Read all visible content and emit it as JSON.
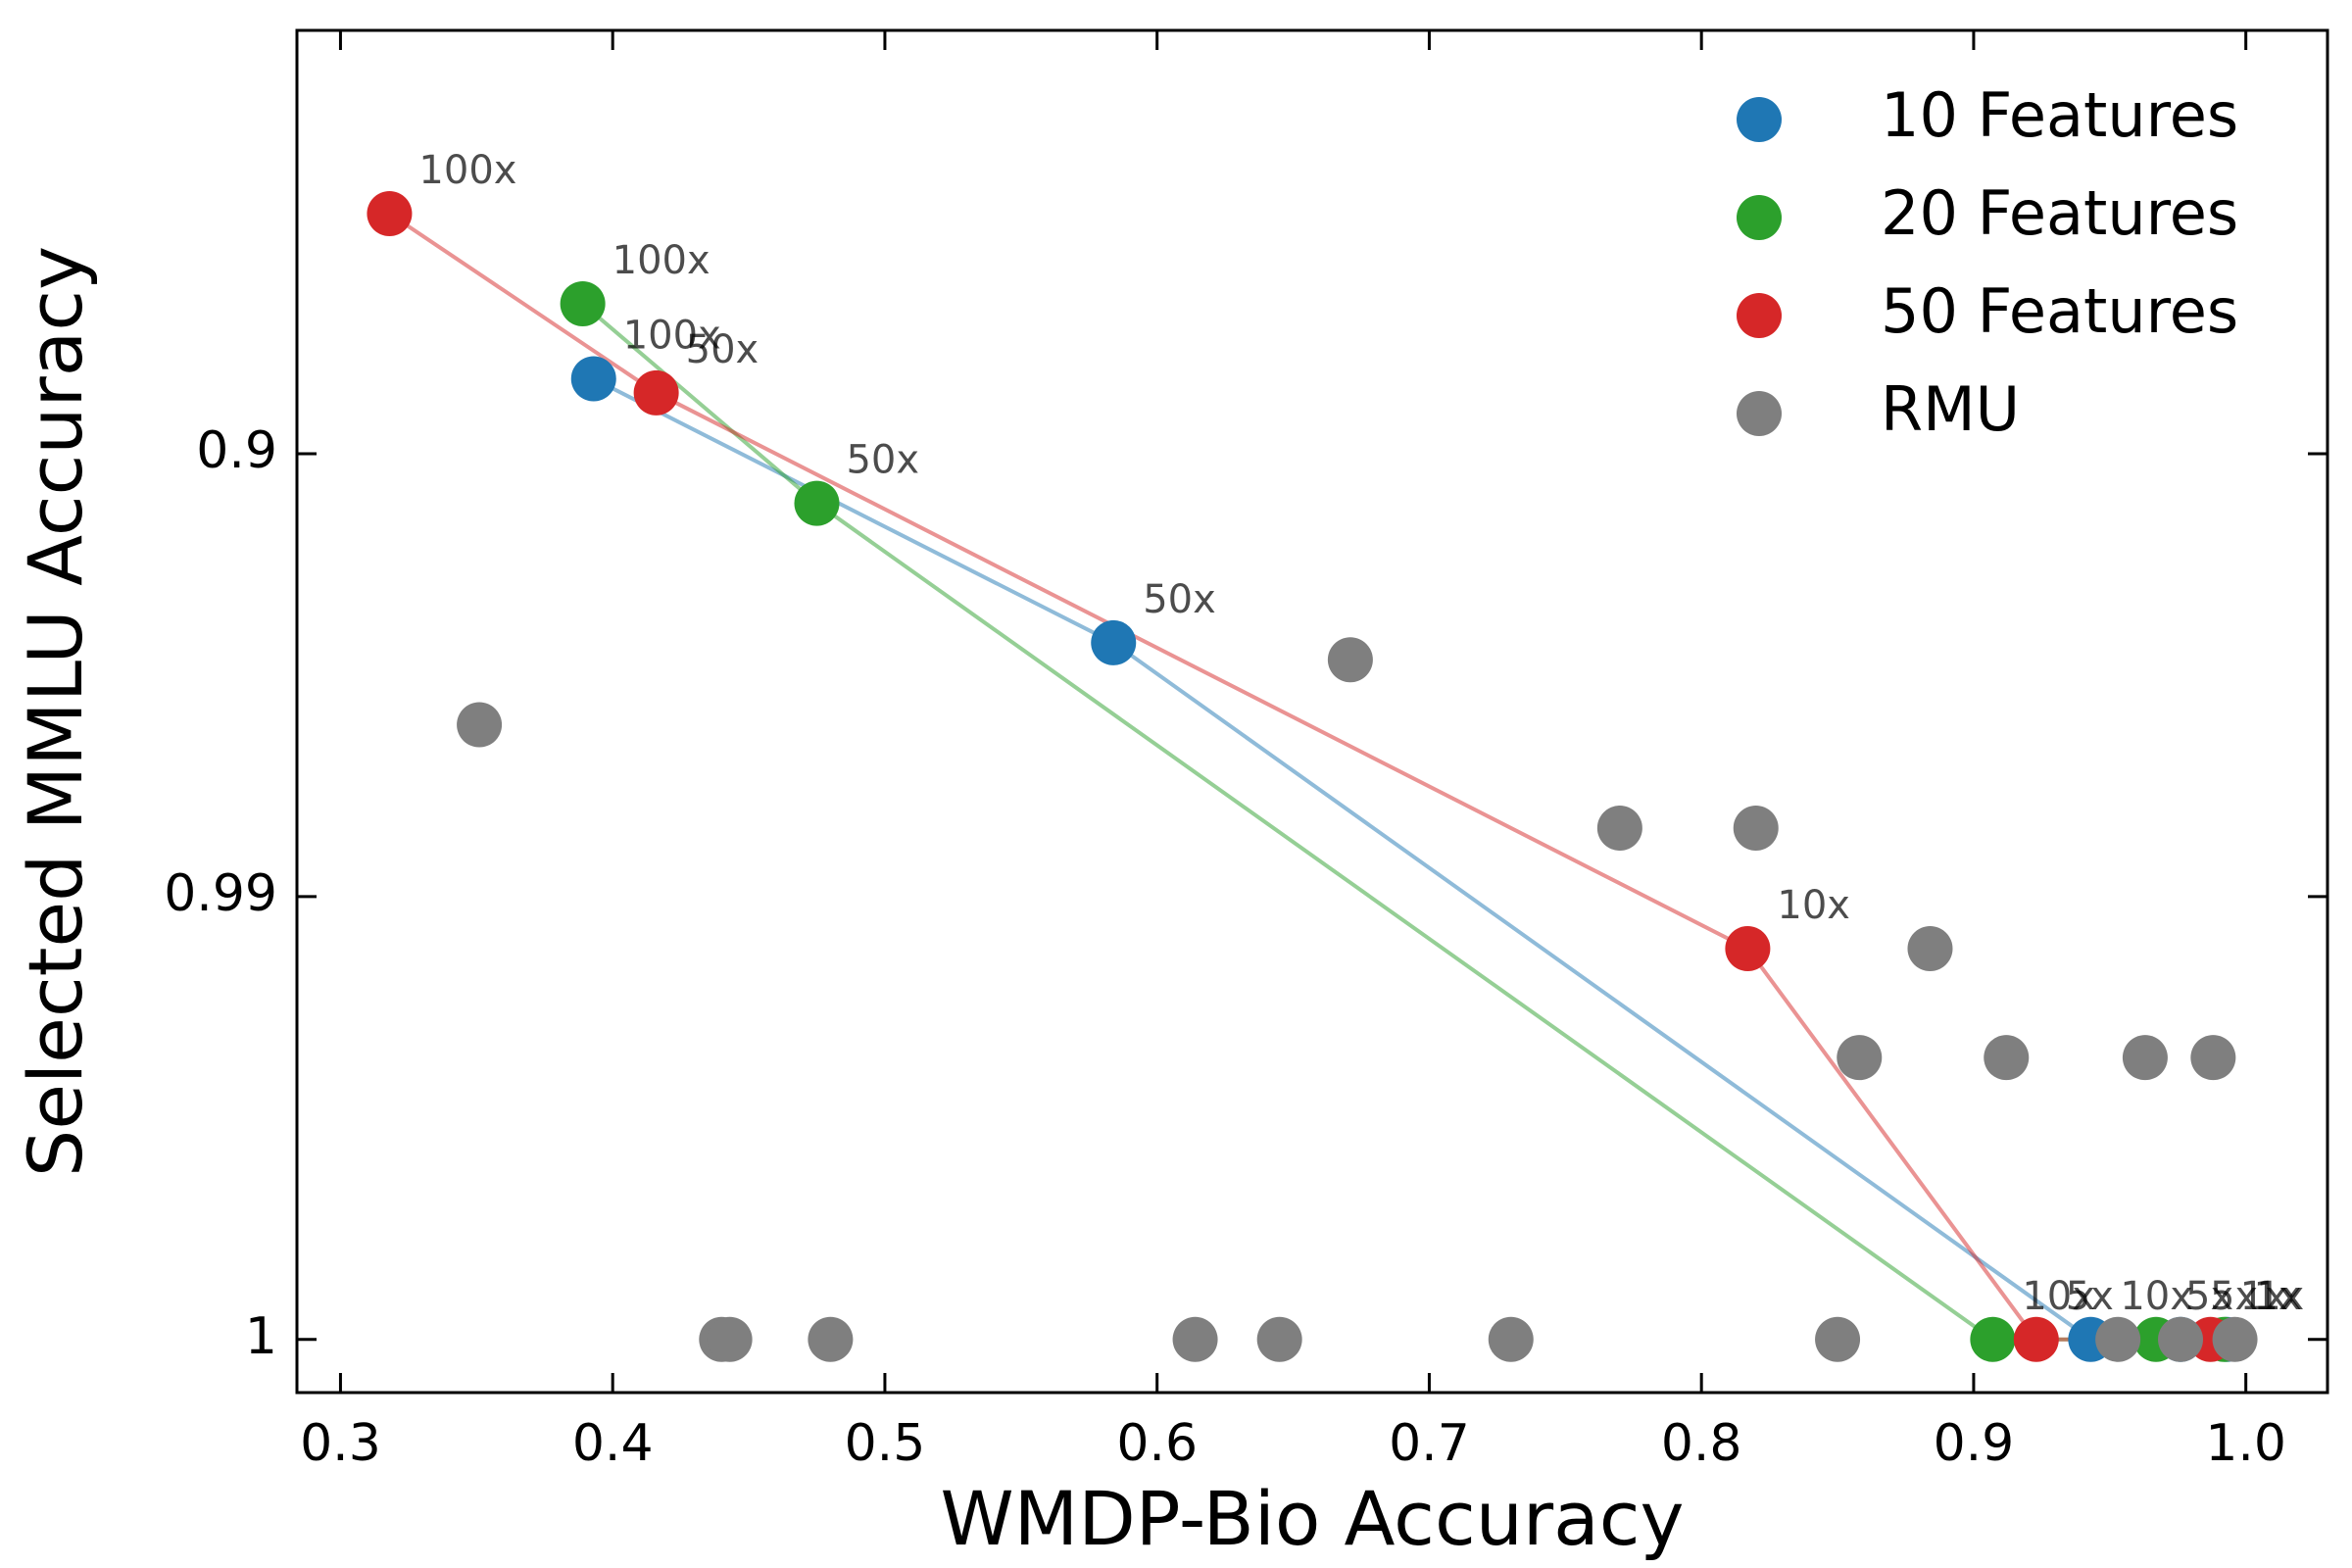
{
  "chart_data": {
    "type": "scatter",
    "xlabel": "WMDP-Bio Accuracy",
    "ylabel": "Selected MMLU Accuracy",
    "xlim": [
      0.284,
      1.03
    ],
    "ylim": [
      1.00025,
      0.16
    ],
    "xticks": [
      0.3,
      0.4,
      0.5,
      0.6,
      0.7,
      0.8,
      0.9,
      {
        "value": 1,
        "label": "1.0"
      }
    ],
    "yticks": [
      0.9,
      0.99,
      1
    ],
    "legend": "upper right",
    "series": [
      {
        "name": "10 Features",
        "color": "#1f77b4",
        "line": true,
        "x": [
          0.393,
          0.584,
          0.943,
          0.976,
          0.993
        ],
        "values": [
          0.854,
          0.9618,
          1,
          1,
          1
        ],
        "labels": [
          "100x",
          "50x",
          "10x",
          "5x",
          "1x"
        ]
      },
      {
        "name": "20 Features",
        "color": "#2ca02c",
        "line": true,
        "x": [
          0.389,
          0.475,
          0.907,
          0.967,
          0.992
        ],
        "values": [
          0.787,
          0.9222,
          1,
          1,
          1
        ],
        "labels": [
          "100x",
          "50x",
          "10x",
          "5x",
          "1x"
        ]
      },
      {
        "name": "50 Features",
        "color": "#d62728",
        "line": true,
        "x": [
          0.318,
          0.416,
          0.817,
          0.923,
          0.987
        ],
        "values": [
          0.665,
          0.864,
          0.9927,
          1,
          1
        ],
        "labels": [
          "100x",
          "50x",
          "10x",
          "5x",
          "1x"
        ]
      },
      {
        "name": "RMU",
        "color": "#7f7f7f",
        "line": false,
        "x": [
          0.351,
          0.671,
          0.77,
          0.82,
          0.884,
          0.858,
          0.912,
          0.963,
          0.988,
          0.44,
          0.443,
          0.48,
          0.614,
          0.645,
          0.73,
          0.85,
          0.953,
          0.976,
          0.996
        ],
        "values": [
          0.975,
          0.965,
          0.9855,
          0.9855,
          0.9927,
          0.9964,
          0.9964,
          0.9964,
          0.9964,
          1,
          1,
          1,
          1,
          1,
          1,
          1,
          1,
          1,
          1
        ]
      }
    ]
  }
}
